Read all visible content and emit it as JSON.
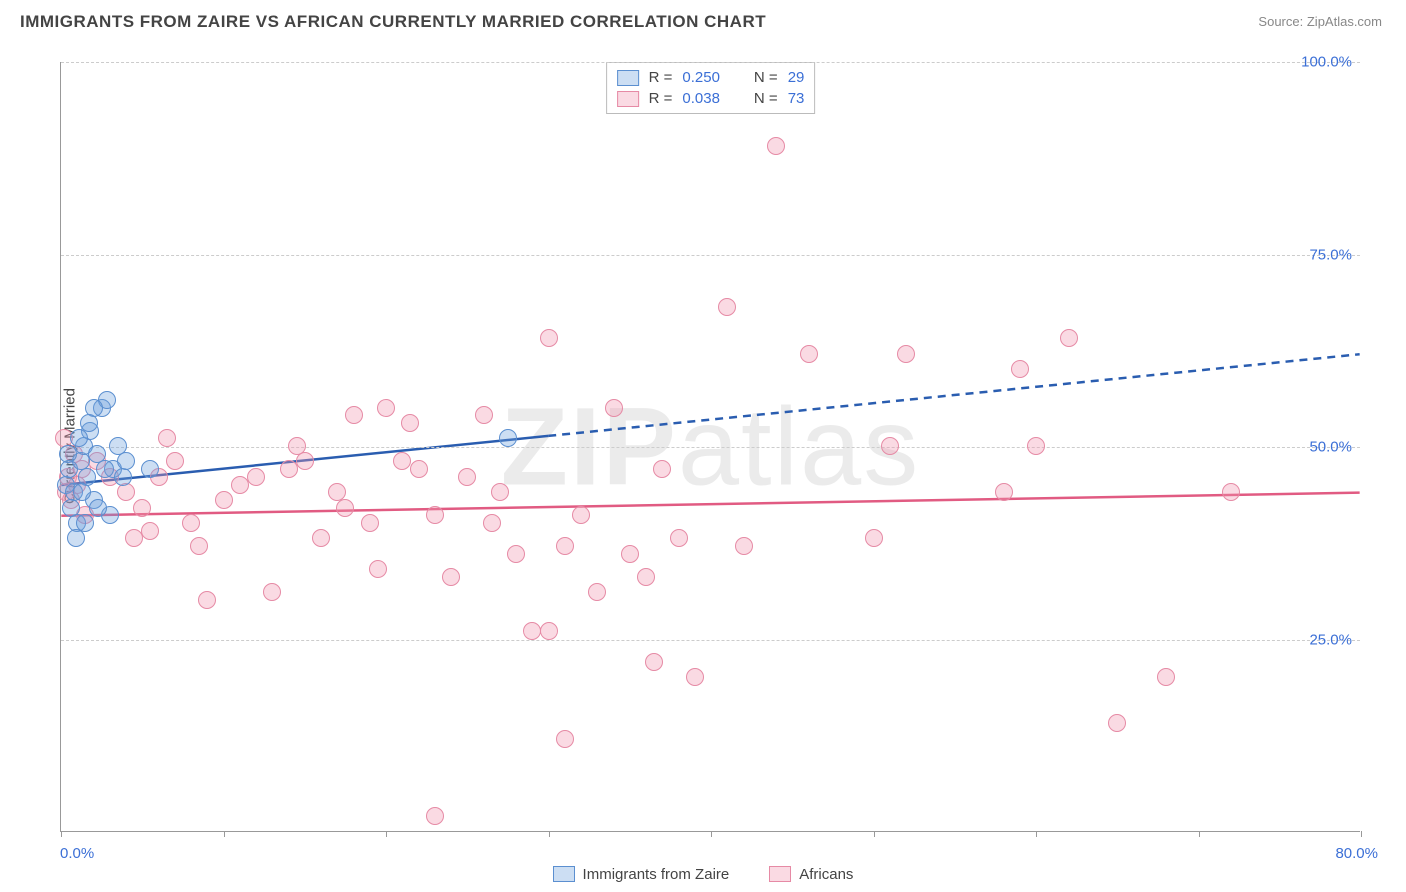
{
  "title": "IMMIGRANTS FROM ZAIRE VS AFRICAN CURRENTLY MARRIED CORRELATION CHART",
  "source_label": "Source:",
  "source_value": "ZipAtlas.com",
  "ylabel": "Currently Married",
  "watermark_bold": "ZIP",
  "watermark_rest": "atlas",
  "chart": {
    "type": "scatter",
    "background_color": "#ffffff",
    "grid_color": "#cccccc",
    "axis_color": "#999999",
    "xlim": [
      0,
      80
    ],
    "ylim": [
      0,
      100
    ],
    "ytick_step": 25,
    "ytick_labels": [
      "0.0%",
      "25.0%",
      "50.0%",
      "75.0%",
      "100.0%"
    ],
    "xtick_positions": [
      0,
      10,
      20,
      30,
      40,
      50,
      60,
      70,
      80
    ],
    "xtick_label_left": "0.0%",
    "xtick_label_right": "80.0%",
    "marker_radius": 9,
    "marker_stroke_width": 1.5,
    "trend_line_width": 2.5,
    "series": [
      {
        "name": "Immigrants from Zaire",
        "color_fill": "rgba(108,160,220,0.35)",
        "color_stroke": "#5b8fd0",
        "trend_color": "#2a5db0",
        "R": "0.250",
        "N": "29",
        "trend_y_at_x0": 45,
        "trend_y_at_xmax": 62,
        "solid_x_end": 30,
        "points": [
          [
            0.3,
            45
          ],
          [
            0.5,
            47
          ],
          [
            0.8,
            44
          ],
          [
            1.0,
            40
          ],
          [
            1.2,
            48
          ],
          [
            1.4,
            50
          ],
          [
            1.6,
            46
          ],
          [
            1.8,
            52
          ],
          [
            2.0,
            43
          ],
          [
            2.2,
            49
          ],
          [
            2.5,
            55
          ],
          [
            2.8,
            56
          ],
          [
            3.0,
            41
          ],
          [
            3.2,
            47
          ],
          [
            3.5,
            50
          ],
          [
            0.6,
            42
          ],
          [
            0.9,
            38
          ],
          [
            1.1,
            51
          ],
          [
            1.3,
            44
          ],
          [
            3.8,
            46
          ],
          [
            4.0,
            48
          ],
          [
            5.5,
            47
          ],
          [
            2.0,
            55
          ],
          [
            2.3,
            42
          ],
          [
            2.7,
            47
          ],
          [
            1.5,
            40
          ],
          [
            1.7,
            53
          ],
          [
            0.4,
            49
          ],
          [
            27.5,
            51
          ]
        ]
      },
      {
        "name": "Africans",
        "color_fill": "rgba(240,150,175,0.35)",
        "color_stroke": "#e68aa5",
        "trend_color": "#e15b82",
        "R": "0.038",
        "N": "73",
        "trend_y_at_x0": 41,
        "trend_y_at_xmax": 44,
        "solid_x_end": 80,
        "points": [
          [
            0.2,
            51
          ],
          [
            0.3,
            44
          ],
          [
            0.4,
            46
          ],
          [
            0.6,
            43
          ],
          [
            0.8,
            49
          ],
          [
            1.0,
            45
          ],
          [
            1.3,
            47
          ],
          [
            3,
            46
          ],
          [
            4,
            44
          ],
          [
            4.5,
            38
          ],
          [
            5,
            42
          ],
          [
            6,
            46
          ],
          [
            7,
            48
          ],
          [
            8,
            40
          ],
          [
            9,
            30
          ],
          [
            10,
            43
          ],
          [
            11,
            45
          ],
          [
            12,
            46
          ],
          [
            13,
            31
          ],
          [
            14,
            47
          ],
          [
            15,
            48
          ],
          [
            16,
            38
          ],
          [
            17,
            44
          ],
          [
            18,
            54
          ],
          [
            19,
            40
          ],
          [
            20,
            55
          ],
          [
            21,
            48
          ],
          [
            22,
            47
          ],
          [
            23,
            41
          ],
          [
            24,
            33
          ],
          [
            25,
            46
          ],
          [
            23,
            2
          ],
          [
            26,
            54
          ],
          [
            27,
            44
          ],
          [
            28,
            36
          ],
          [
            29,
            26
          ],
          [
            30,
            64
          ],
          [
            30,
            26
          ],
          [
            31,
            37
          ],
          [
            31,
            12
          ],
          [
            32,
            41
          ],
          [
            33,
            31
          ],
          [
            34,
            55
          ],
          [
            35,
            36
          ],
          [
            36,
            33
          ],
          [
            36.5,
            22
          ],
          [
            37,
            47
          ],
          [
            38,
            38
          ],
          [
            39,
            20
          ],
          [
            41,
            68
          ],
          [
            42,
            37
          ],
          [
            44,
            89
          ],
          [
            46,
            62
          ],
          [
            50,
            38
          ],
          [
            51,
            50
          ],
          [
            52,
            62
          ],
          [
            58,
            44
          ],
          [
            59,
            60
          ],
          [
            60,
            50
          ],
          [
            62,
            64
          ],
          [
            65,
            14
          ],
          [
            68,
            20
          ],
          [
            72,
            44
          ],
          [
            1.5,
            41
          ],
          [
            2.2,
            48
          ],
          [
            5.5,
            39
          ],
          [
            6.5,
            51
          ],
          [
            8.5,
            37
          ],
          [
            14.5,
            50
          ],
          [
            17.5,
            42
          ],
          [
            19.5,
            34
          ],
          [
            21.5,
            53
          ],
          [
            26.5,
            40
          ]
        ]
      }
    ]
  },
  "legend": {
    "R_label": "R =",
    "N_label": "N ="
  },
  "colors": {
    "axis_text": "#3b6fd6",
    "title_text": "#444444",
    "source_text": "#888888"
  }
}
